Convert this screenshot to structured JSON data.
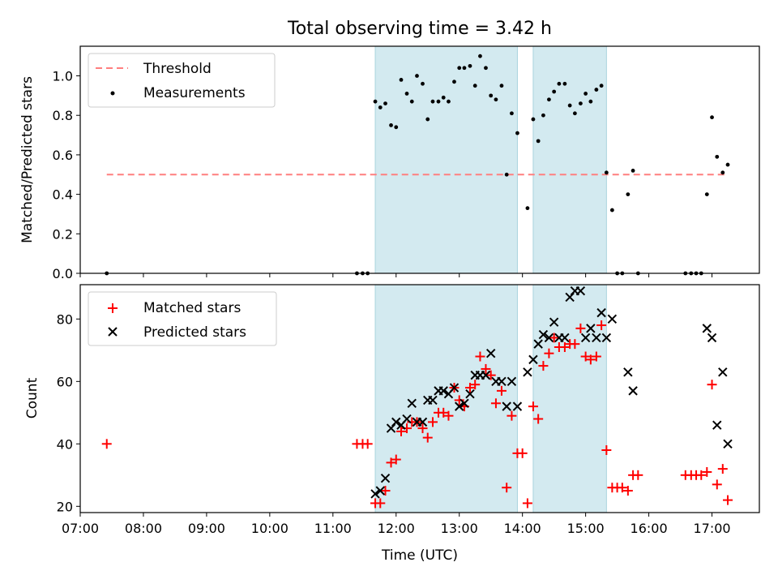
{
  "figure": {
    "title": "Total observing time = 3.42 h"
  },
  "chart_data": [
    {
      "type": "scatter",
      "ylabel": "Matched/Predicted stars",
      "xlabel": "",
      "xlim": [
        7.0,
        17.75
      ],
      "ylim": [
        0.0,
        1.15
      ],
      "yticks": [
        "0.0",
        "0.2",
        "0.4",
        "0.6",
        "0.8",
        "1.0"
      ],
      "ytick_values": [
        0,
        0.2,
        0.4,
        0.6,
        0.8,
        1.0
      ],
      "xticks_shown": false,
      "legend": {
        "placement": "top-left",
        "entries": [
          "Threshold",
          "Measurements"
        ]
      },
      "shaded_intervals": [
        [
          11.67,
          13.92
        ],
        [
          14.17,
          15.33
        ]
      ],
      "shade_color": "#d3eaf0",
      "threshold": {
        "name": "Threshold",
        "value": 0.5,
        "x_range": [
          7.42,
          17.25
        ],
        "color": "#ff7f7f"
      },
      "series": [
        {
          "name": "Measurements",
          "color": "#000000",
          "x": [
            7.42,
            11.38,
            11.47,
            11.55,
            11.67,
            11.75,
            11.83,
            11.92,
            12.0,
            12.08,
            12.17,
            12.25,
            12.33,
            12.42,
            12.5,
            12.58,
            12.67,
            12.75,
            12.83,
            12.92,
            13.0,
            13.08,
            13.17,
            13.25,
            13.33,
            13.42,
            13.5,
            13.58,
            13.67,
            13.75,
            13.83,
            13.92,
            14.08,
            14.17,
            14.25,
            14.33,
            14.42,
            14.5,
            14.58,
            14.67,
            14.75,
            14.83,
            14.92,
            15.0,
            15.08,
            15.17,
            15.25,
            15.33,
            15.42,
            15.5,
            15.58,
            15.67,
            15.75,
            15.83,
            16.58,
            16.67,
            16.75,
            16.83,
            16.92,
            17.0,
            17.08,
            17.17,
            17.25
          ],
          "y": [
            0.0,
            0.0,
            0.0,
            0.0,
            0.87,
            0.84,
            0.86,
            0.75,
            0.74,
            0.98,
            0.91,
            0.87,
            1.0,
            0.96,
            0.78,
            0.87,
            0.87,
            0.89,
            0.87,
            0.97,
            1.04,
            1.04,
            1.05,
            0.95,
            1.1,
            1.04,
            0.9,
            0.88,
            0.95,
            0.5,
            0.81,
            0.71,
            0.33,
            0.78,
            0.67,
            0.8,
            0.88,
            0.92,
            0.96,
            0.96,
            0.85,
            0.81,
            0.86,
            0.91,
            0.87,
            0.93,
            0.95,
            0.51,
            0.32,
            0.0,
            0.0,
            0.4,
            0.52,
            0.0,
            0.0,
            0.0,
            0.0,
            0.0,
            0.4,
            0.79,
            0.59,
            0.51,
            0.55
          ]
        }
      ]
    },
    {
      "type": "scatter",
      "ylabel": "Count",
      "xlabel": "Time (UTC)",
      "xlim": [
        7.0,
        17.75
      ],
      "ylim": [
        18.0,
        91.0
      ],
      "yticks": [
        "20",
        "40",
        "60",
        "80"
      ],
      "ytick_values": [
        20,
        40,
        60,
        80
      ],
      "xticks": [
        "07:00",
        "08:00",
        "09:00",
        "10:00",
        "11:00",
        "12:00",
        "13:00",
        "14:00",
        "15:00",
        "16:00",
        "17:00"
      ],
      "xtick_values": [
        7,
        8,
        9,
        10,
        11,
        12,
        13,
        14,
        15,
        16,
        17
      ],
      "legend": {
        "placement": "top-left",
        "entries": [
          "Matched stars",
          "Predicted stars"
        ]
      },
      "shaded_intervals": [
        [
          11.67,
          13.92
        ],
        [
          14.17,
          15.33
        ]
      ],
      "shade_color": "#d3eaf0",
      "series": [
        {
          "name": "Matched stars",
          "marker": "plus",
          "color": "#ff0000",
          "x": [
            7.42,
            11.38,
            11.47,
            11.55,
            11.67,
            11.75,
            11.83,
            11.92,
            12.0,
            12.08,
            12.17,
            12.25,
            12.33,
            12.42,
            12.5,
            12.58,
            12.67,
            12.75,
            12.83,
            12.92,
            13.0,
            13.08,
            13.17,
            13.25,
            13.33,
            13.42,
            13.5,
            13.58,
            13.67,
            13.75,
            13.83,
            13.92,
            14.0,
            14.08,
            14.17,
            14.25,
            14.33,
            14.42,
            14.5,
            14.58,
            14.67,
            14.75,
            14.83,
            14.92,
            15.0,
            15.08,
            15.17,
            15.25,
            15.33,
            15.42,
            15.5,
            15.58,
            15.67,
            15.75,
            15.83,
            16.58,
            16.67,
            16.75,
            16.83,
            16.92,
            17.0,
            17.08,
            17.17,
            17.25
          ],
          "y": [
            40,
            40,
            40,
            40,
            21,
            21,
            25,
            34,
            35,
            44,
            45,
            47,
            47,
            45,
            42,
            47,
            50,
            50,
            49,
            58,
            54,
            52,
            58,
            59,
            68,
            64,
            62,
            53,
            57,
            26,
            49,
            37,
            37,
            21,
            52,
            48,
            65,
            69,
            74,
            71,
            71,
            72,
            72,
            77,
            68,
            67,
            68,
            78,
            38,
            26,
            26,
            26,
            25,
            30,
            30,
            30,
            30,
            30,
            30,
            31,
            59,
            27,
            32,
            22
          ]
        },
        {
          "name": "Predicted stars",
          "marker": "x",
          "color": "#000000",
          "x": [
            11.67,
            11.75,
            11.83,
            11.92,
            12.0,
            12.08,
            12.17,
            12.25,
            12.33,
            12.42,
            12.5,
            12.58,
            12.67,
            12.75,
            12.83,
            12.92,
            13.0,
            13.08,
            13.17,
            13.25,
            13.33,
            13.42,
            13.5,
            13.58,
            13.67,
            13.75,
            13.83,
            13.92,
            14.08,
            14.17,
            14.25,
            14.33,
            14.42,
            14.5,
            14.58,
            14.67,
            14.75,
            14.83,
            14.92,
            15.0,
            15.08,
            15.17,
            15.25,
            15.33,
            15.42,
            15.67,
            15.75,
            16.92,
            17.0,
            17.08,
            17.17,
            17.25
          ],
          "y": [
            24,
            25,
            29,
            45,
            47,
            46,
            48,
            53,
            47,
            47,
            54,
            54,
            57,
            57,
            56,
            58,
            52,
            53,
            56,
            62,
            62,
            62,
            69,
            60,
            60,
            52,
            60,
            52,
            63,
            67,
            72,
            75,
            74,
            79,
            74,
            74,
            87,
            89,
            89,
            74,
            77,
            74,
            82,
            74,
            80,
            63,
            57,
            77,
            74,
            46,
            63,
            40
          ]
        }
      ]
    }
  ]
}
